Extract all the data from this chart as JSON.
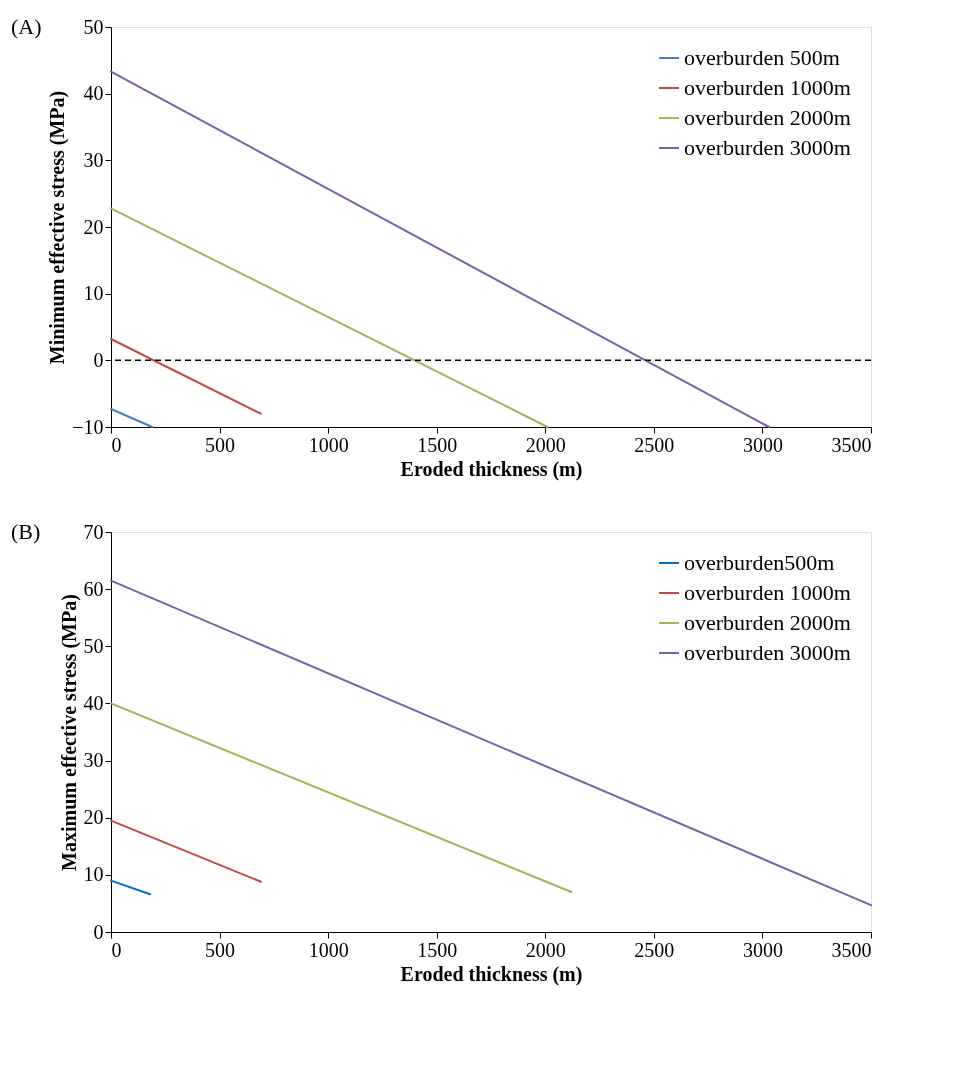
{
  "chart_data": [
    {
      "type": "line",
      "xlabel": "Eroded thickness (m)",
      "ylabel": "Minimum effective stress (MPa)",
      "annotations": [
        "(A)"
      ],
      "xlim": [
        0,
        3500
      ],
      "xticks": [
        0,
        500,
        1000,
        1500,
        2000,
        2500,
        3000,
        3500
      ],
      "ylim": [
        -10,
        50
      ],
      "yticks": [
        -10,
        0,
        10,
        20,
        30,
        40,
        50
      ],
      "grid": false,
      "legend": "top right",
      "marker": "none",
      "line_style": "solid",
      "ref_lines": [
        {
          "axis": "y",
          "value": 0,
          "color": "#000000",
          "line_style": "dashed"
        }
      ],
      "series": [
        {
          "name": "overburden 500m",
          "color": "#4a7ebb",
          "x": [
            0,
            190
          ],
          "values": [
            -7.3,
            -10
          ]
        },
        {
          "name": "overburden 1000m",
          "color": "#be4b48",
          "x": [
            0,
            690
          ],
          "values": [
            3.2,
            -8
          ]
        },
        {
          "name": "overburden 2000m",
          "color": "#98b954",
          "x": [
            0,
            2010
          ],
          "values": [
            22.8,
            -10
          ]
        },
        {
          "name": "overburden 3000m",
          "color": "#7d60a0",
          "x": [
            0,
            3030
          ],
          "values": [
            43.3,
            -10
          ]
        }
      ]
    },
    {
      "type": "line",
      "xlabel": "Eroded thickness (m)",
      "ylabel": "Maximum effective stress (MPa)",
      "annotations": [
        "(B)"
      ],
      "xlim": [
        0,
        3500
      ],
      "xticks": [
        0,
        500,
        1000,
        1500,
        2000,
        2500,
        3000,
        3500
      ],
      "ylim": [
        0,
        70
      ],
      "yticks": [
        0,
        10,
        20,
        30,
        40,
        50,
        60,
        70
      ],
      "grid": false,
      "legend": "top right",
      "marker": "none",
      "line_style": "solid",
      "series": [
        {
          "name": "overburden500m",
          "color": "#0070c0",
          "x": [
            0,
            180
          ],
          "values": [
            9,
            6.6
          ]
        },
        {
          "name": "overburden 1000m",
          "color": "#be4b48",
          "x": [
            0,
            690
          ],
          "values": [
            19.5,
            8.8
          ]
        },
        {
          "name": "overburden 2000m",
          "color": "#98b954",
          "x": [
            0,
            2120
          ],
          "values": [
            40,
            7
          ]
        },
        {
          "name": "overburden 3000m",
          "color": "#7d60a0",
          "x": [
            0,
            3500
          ],
          "values": [
            61.5,
            4.7
          ]
        }
      ]
    }
  ]
}
